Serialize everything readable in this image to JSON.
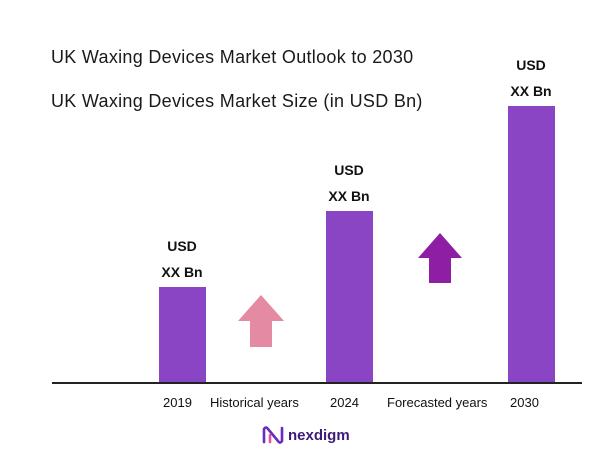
{
  "title": "UK Waxing Devices Market Outlook to 2030",
  "subtitle": "UK Waxing Devices Market Size (in USD Bn)",
  "chart_data": {
    "type": "bar",
    "title": "UK Waxing Devices Market Outlook to 2030",
    "subtitle": "UK Waxing Devices Market Size (in USD Bn)",
    "categories": [
      "2019",
      "2024",
      "2030"
    ],
    "values": [
      1,
      1.8,
      2.9
    ],
    "value_labels": [
      [
        "USD",
        "XX Bn"
      ],
      [
        "USD",
        "XX Bn"
      ],
      [
        "USD",
        "XX Bn"
      ]
    ],
    "bar_color": "#8a45c4",
    "segment_labels": [
      "Historical years",
      "Forecasted years"
    ],
    "arrow_colors": [
      "#e48aa2",
      "#8e1ea4"
    ],
    "grid": false,
    "xlabel": "",
    "ylabel": ""
  },
  "logo": {
    "name": "nexdigm-logo",
    "text": "nexdigm",
    "color": "#3d1a78"
  }
}
